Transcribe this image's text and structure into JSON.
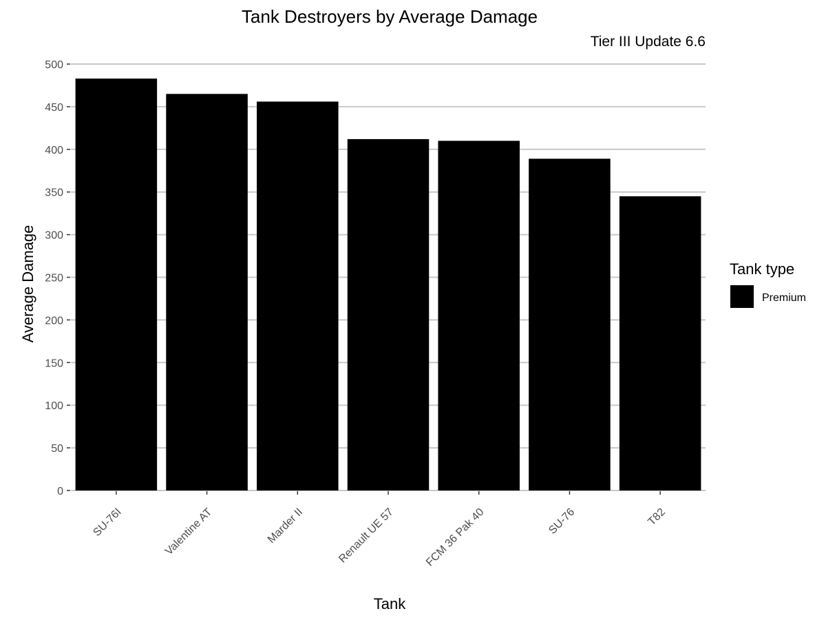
{
  "chart_data": {
    "type": "bar",
    "title": "Tank Destroyers by Average Damage",
    "subtitle": "Tier III Update 6.6",
    "xlabel": "Tank",
    "ylabel": "Average Damage",
    "categories": [
      "SU-76I",
      "Valentine AT",
      "Marder II",
      "Renault UE 57",
      "FCM 36 Pak 40",
      "SU-76",
      "T82"
    ],
    "series": [
      {
        "name": "Premium",
        "values": [
          483,
          465,
          456,
          412,
          410,
          389,
          345
        ],
        "color": "#000000"
      }
    ],
    "ylim": [
      0,
      500
    ],
    "yticks": [
      0,
      50,
      100,
      150,
      200,
      250,
      300,
      350,
      400,
      450,
      500
    ],
    "grid": "horizontal",
    "legend": {
      "title": "Tank type",
      "placement": "right",
      "items": [
        {
          "label": "Premium",
          "color": "#000000"
        }
      ]
    }
  }
}
